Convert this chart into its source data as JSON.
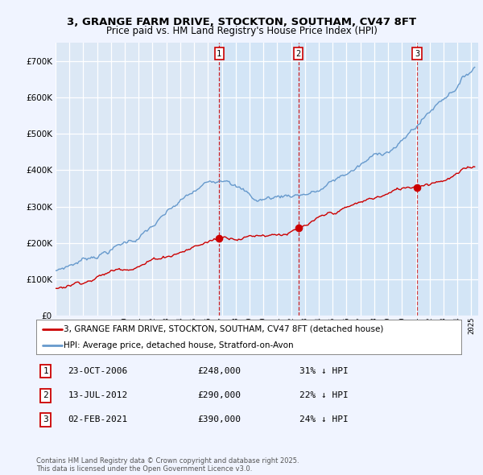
{
  "title": "3, GRANGE FARM DRIVE, STOCKTON, SOUTHAM, CV47 8FT",
  "subtitle": "Price paid vs. HM Land Registry's House Price Index (HPI)",
  "legend_line1": "3, GRANGE FARM DRIVE, STOCKTON, SOUTHAM, CV47 8FT (detached house)",
  "legend_line2": "HPI: Average price, detached house, Stratford-on-Avon",
  "sale_color": "#cc0000",
  "hpi_color": "#6699cc",
  "vline_color": "#cc0000",
  "shade_color": "#d0e4f7",
  "purchases": [
    {
      "label": "1",
      "date": "23-OCT-2006",
      "price": 248000,
      "note": "31% ↓ HPI",
      "x_year": 2006.81
    },
    {
      "label": "2",
      "date": "13-JUL-2012",
      "price": 290000,
      "note": "22% ↓ HPI",
      "x_year": 2012.53
    },
    {
      "label": "3",
      "date": "02-FEB-2021",
      "price": 390000,
      "note": "24% ↓ HPI",
      "x_year": 2021.09
    }
  ],
  "footer": "Contains HM Land Registry data © Crown copyright and database right 2025.\nThis data is licensed under the Open Government Licence v3.0.",
  "ylim": [
    0,
    750000
  ],
  "yticks": [
    0,
    100000,
    200000,
    300000,
    400000,
    500000,
    600000,
    700000
  ],
  "xlim_start": 1995.0,
  "xlim_end": 2025.5,
  "background_color": "#f0f4ff",
  "plot_bg": "#dce8f5"
}
